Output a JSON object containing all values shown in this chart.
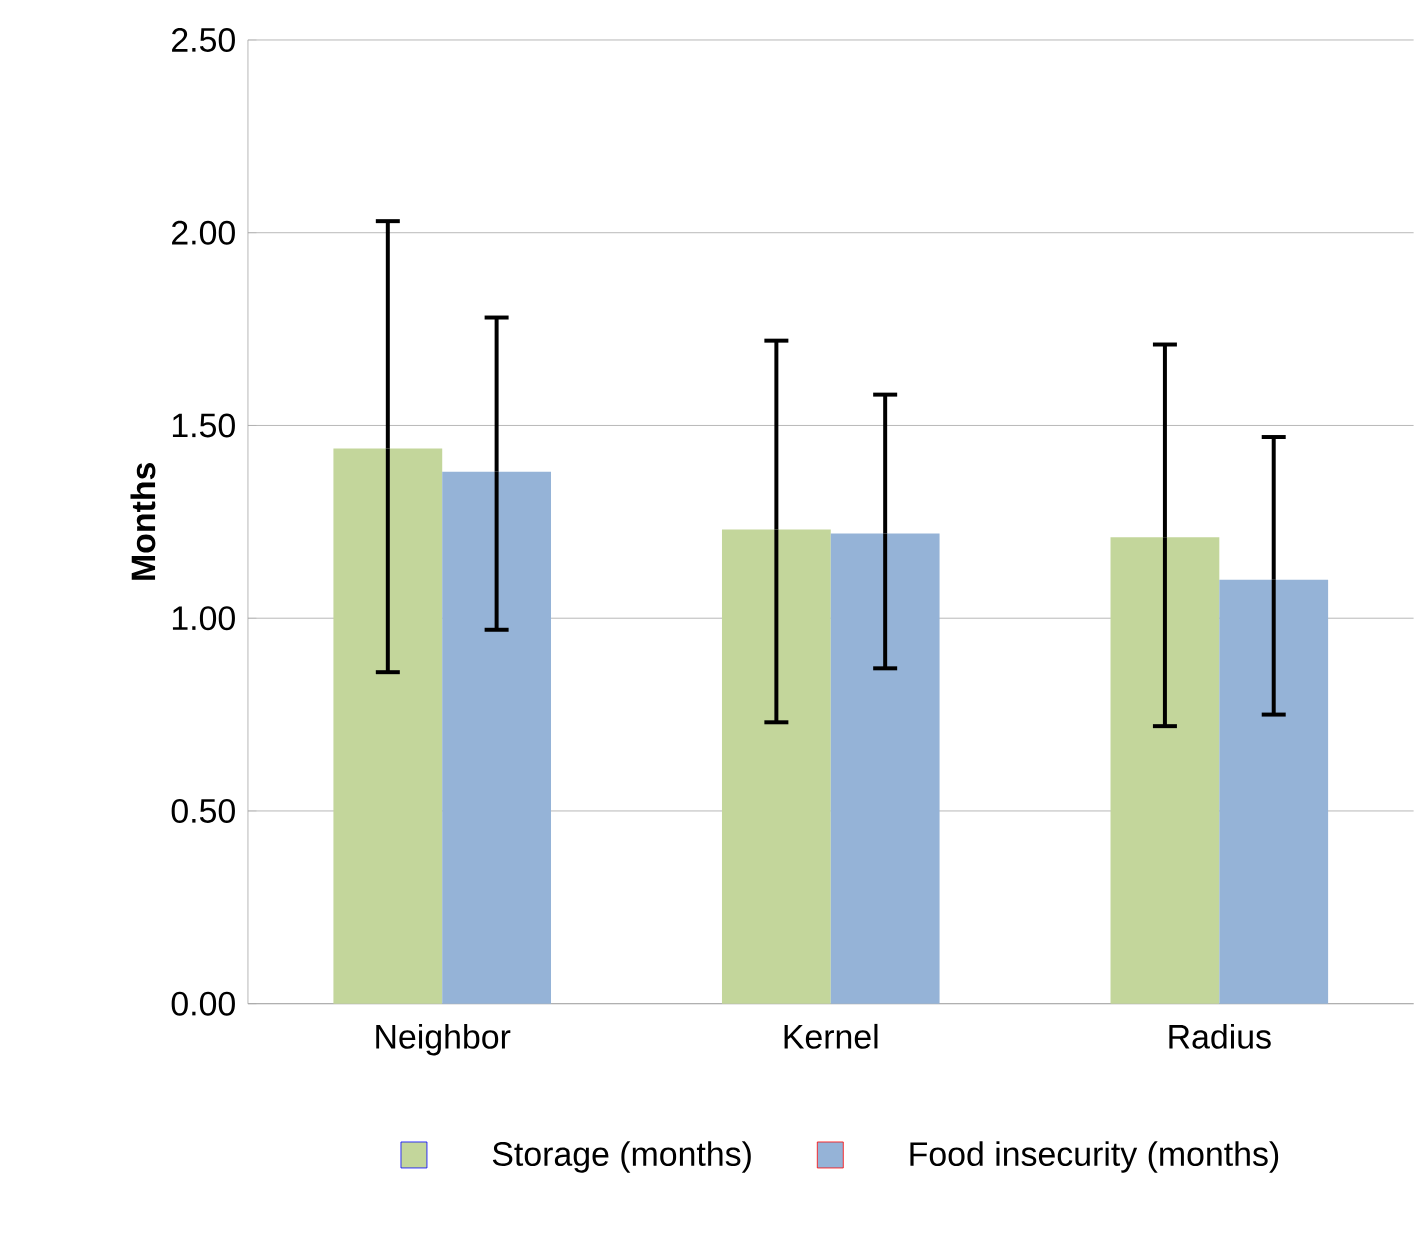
{
  "chart_data": {
    "type": "bar",
    "ylabel": "**Months**",
    "categories": [
      "Neighbor",
      "Kernel",
      "Radius"
    ],
    "series": [
      {
        "name": "Storage (months)",
        "color": "#c3d69b",
        "values": [
          1.44,
          1.23,
          1.21
        ],
        "errors": [
          [
            0.86,
            2.03
          ],
          [
            0.73,
            1.72
          ],
          [
            0.72,
            1.71
          ]
        ]
      },
      {
        "name": "Food insecurity (months)",
        "color": "#95b3d7",
        "values": [
          1.38,
          1.22,
          1.1
        ],
        "errors": [
          [
            0.97,
            1.78
          ],
          [
            0.87,
            1.58
          ],
          [
            0.75,
            1.47
          ]
        ]
      }
    ],
    "ylim": [
      0,
      2.5
    ],
    "yticks": [
      {
        "value": 0,
        "label": "0.00"
      },
      {
        "value": 0.5,
        "label": "0.50"
      },
      {
        "value": 1,
        "label": "1.00"
      },
      {
        "value": 1.5,
        "label": "1.50"
      },
      {
        "value": 2,
        "label": "2.00"
      },
      {
        "value": 2.5,
        "label": "2.50"
      }
    ],
    "grid": "y",
    "legend": "bottom"
  }
}
